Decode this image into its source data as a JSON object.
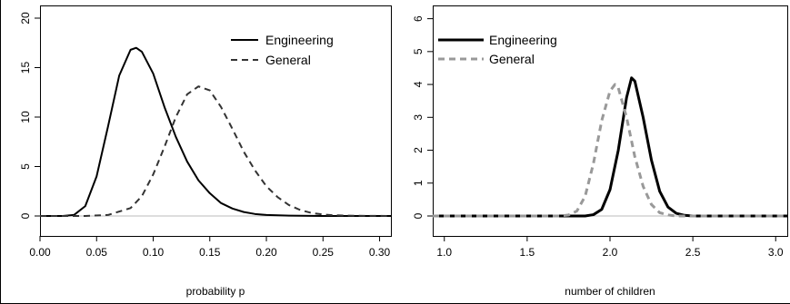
{
  "chart_data": [
    {
      "type": "line",
      "xlabel": "probability p",
      "ylabel": "",
      "xlim": [
        0,
        0.31
      ],
      "ylim": [
        0,
        20
      ],
      "xticks": [
        "0.00",
        "0.05",
        "0.10",
        "0.15",
        "0.20",
        "0.25",
        "0.30"
      ],
      "yticks": [
        "0",
        "5",
        "10",
        "15",
        "20"
      ],
      "legend_position": "top-right",
      "grid": false,
      "series": [
        {
          "name": "Engineering",
          "style": "solid",
          "color": "#000000",
          "x": [
            0.0,
            0.02,
            0.03,
            0.04,
            0.05,
            0.06,
            0.07,
            0.08,
            0.085,
            0.09,
            0.1,
            0.11,
            0.12,
            0.13,
            0.14,
            0.15,
            0.16,
            0.17,
            0.18,
            0.19,
            0.2,
            0.22,
            0.25,
            0.31
          ],
          "y": [
            0,
            0,
            0.1,
            1.0,
            4.0,
            9.0,
            14.2,
            16.8,
            17.0,
            16.6,
            14.4,
            11.0,
            8.0,
            5.5,
            3.6,
            2.3,
            1.3,
            0.75,
            0.4,
            0.2,
            0.1,
            0.03,
            0,
            0
          ]
        },
        {
          "name": "General",
          "style": "dashed",
          "color": "#333333",
          "x": [
            0.0,
            0.04,
            0.06,
            0.08,
            0.09,
            0.1,
            0.11,
            0.12,
            0.13,
            0.14,
            0.15,
            0.16,
            0.17,
            0.18,
            0.19,
            0.2,
            0.21,
            0.22,
            0.23,
            0.24,
            0.25,
            0.26,
            0.28,
            0.31
          ],
          "y": [
            0,
            0,
            0.1,
            0.8,
            2.0,
            4.2,
            7.0,
            10.0,
            12.3,
            13.1,
            12.7,
            11.0,
            8.8,
            6.5,
            4.6,
            3.0,
            1.9,
            1.1,
            0.6,
            0.3,
            0.15,
            0.07,
            0.02,
            0
          ]
        }
      ]
    },
    {
      "type": "line",
      "xlabel": "number of children",
      "ylabel": "",
      "xlim": [
        0.93,
        3.07
      ],
      "ylim": [
        0,
        6
      ],
      "xticks": [
        "1.0",
        "1.5",
        "2.0",
        "2.5",
        "3.0"
      ],
      "yticks": [
        "0",
        "1",
        "2",
        "3",
        "4",
        "5",
        "6"
      ],
      "legend_position": "top-left",
      "grid": false,
      "series": [
        {
          "name": "Engineering",
          "style": "solid",
          "color": "#000000",
          "x": [
            0.93,
            1.85,
            1.9,
            1.95,
            2.0,
            2.05,
            2.1,
            2.13,
            2.15,
            2.2,
            2.25,
            2.3,
            2.35,
            2.4,
            2.45,
            2.5,
            3.07
          ],
          "y": [
            0,
            0,
            0.04,
            0.2,
            0.8,
            2.0,
            3.6,
            4.2,
            4.1,
            3.0,
            1.7,
            0.75,
            0.27,
            0.08,
            0.02,
            0,
            0
          ]
        },
        {
          "name": "General",
          "style": "dashed",
          "color": "#999999",
          "x": [
            0.93,
            1.7,
            1.75,
            1.8,
            1.85,
            1.9,
            1.95,
            2.0,
            2.03,
            2.05,
            2.1,
            2.15,
            2.2,
            2.25,
            2.3,
            2.35,
            2.4,
            3.07
          ],
          "y": [
            0,
            0,
            0.03,
            0.15,
            0.6,
            1.6,
            2.9,
            3.8,
            4.0,
            3.9,
            3.0,
            1.8,
            0.9,
            0.35,
            0.1,
            0.03,
            0,
            0
          ]
        }
      ]
    }
  ]
}
